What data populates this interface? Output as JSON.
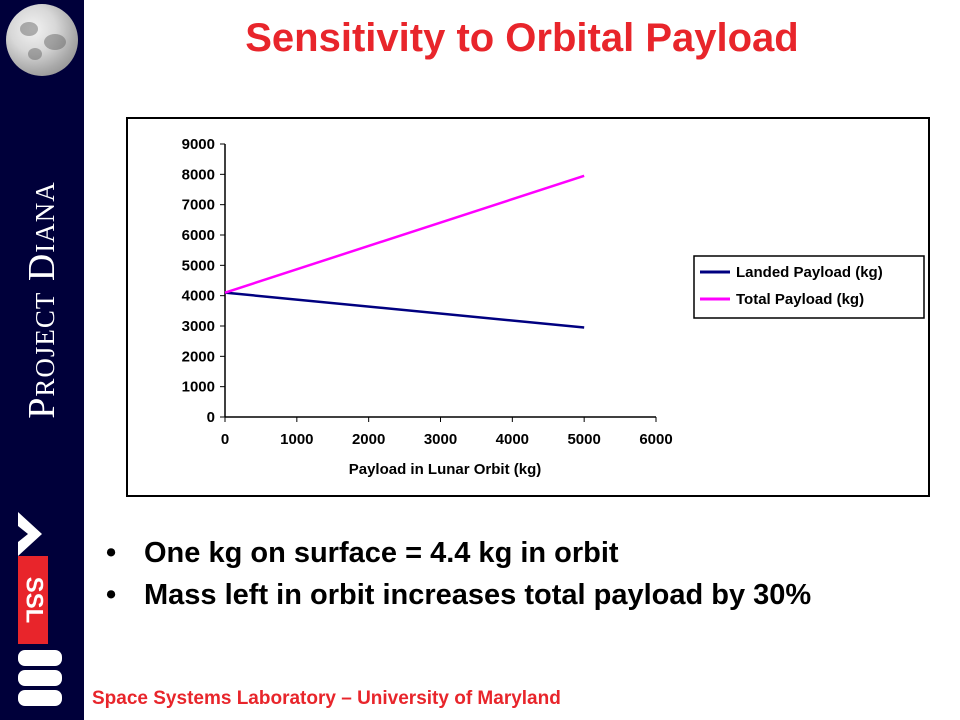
{
  "sidebar": {
    "project_label": "Project Diana",
    "moon_icon": "moon-image",
    "logo": "ssl-logo",
    "logo_text": "SSL"
  },
  "slide": {
    "title": "Sensitivity to Orbital Payload",
    "bullets": [
      "One kg on surface = 4.4 kg in orbit",
      "Mass left in orbit increases total payload by 30%"
    ],
    "footer": "Space Systems Laboratory – University of Maryland"
  },
  "chart_data": {
    "type": "line",
    "title": "",
    "xlabel": "Payload in Lunar Orbit (kg)",
    "ylabel": "",
    "xlim": [
      0,
      6000
    ],
    "ylim": [
      0,
      9000
    ],
    "xticks": [
      0,
      1000,
      2000,
      3000,
      4000,
      5000,
      6000
    ],
    "yticks": [
      0,
      1000,
      2000,
      3000,
      4000,
      5000,
      6000,
      7000,
      8000,
      9000
    ],
    "grid": false,
    "legend_position": "right",
    "series": [
      {
        "name": "Landed Payload (kg)",
        "color": "#000080",
        "x": [
          0,
          5000
        ],
        "y": [
          4100,
          2950
        ]
      },
      {
        "name": "Total Payload (kg)",
        "color": "#ff00ff",
        "x": [
          0,
          5000
        ],
        "y": [
          4100,
          7950
        ]
      }
    ]
  }
}
